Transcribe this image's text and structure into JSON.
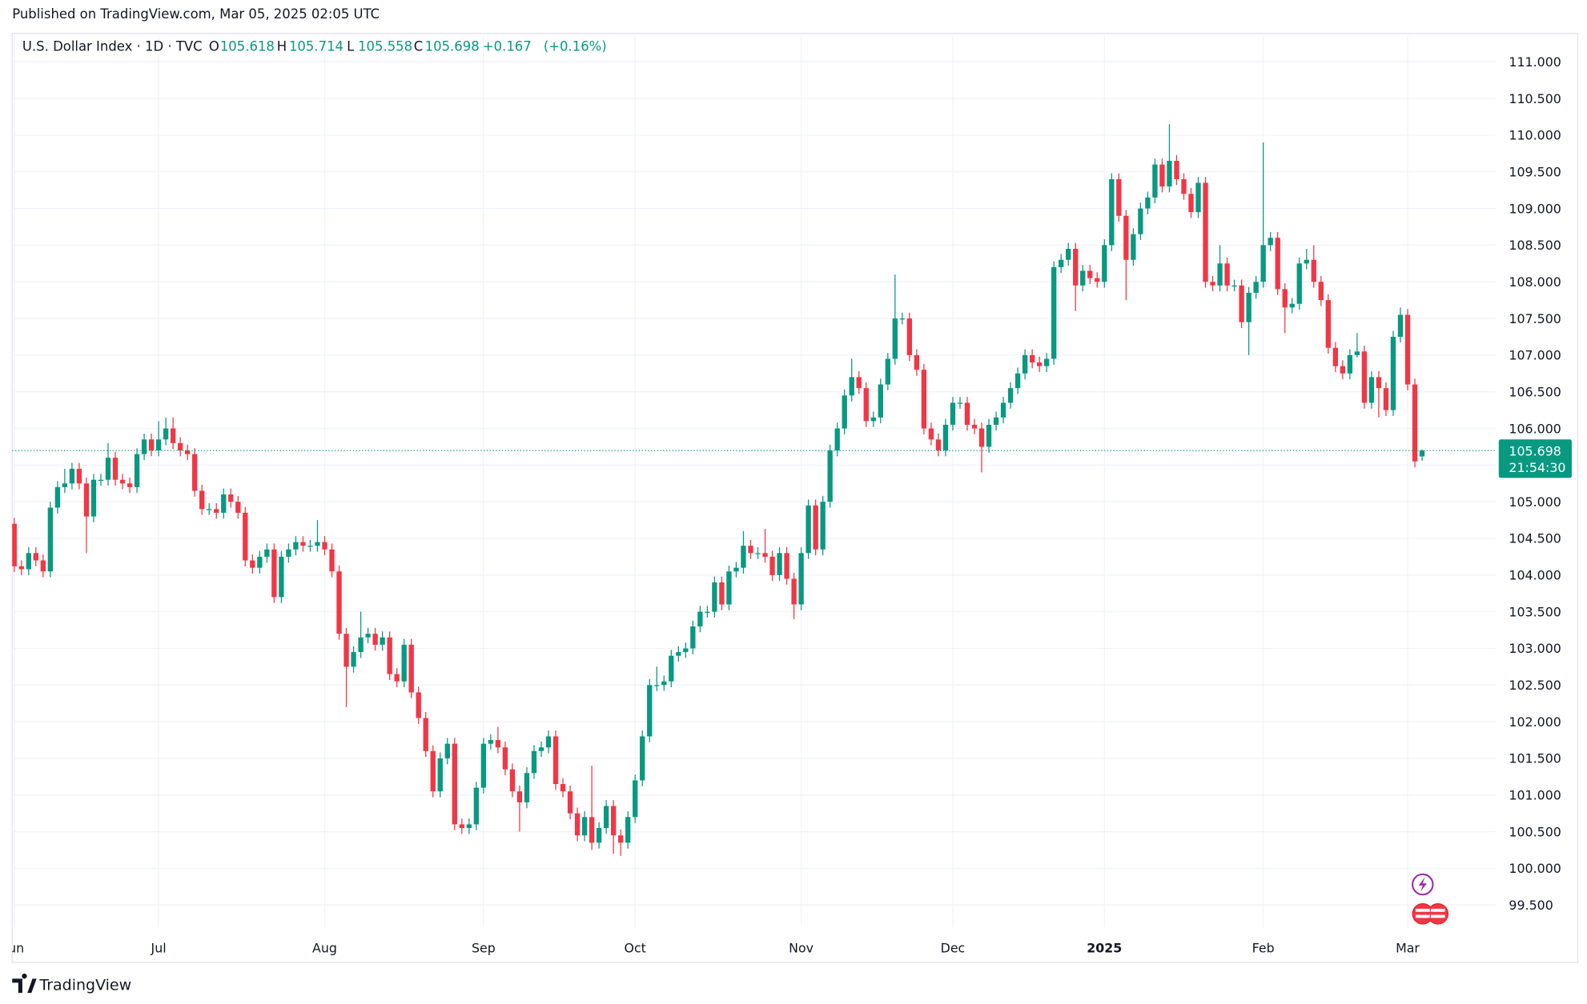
{
  "published": "Published on TradingView.com, Mar 05, 2025 02:05 UTC",
  "brand": "TradingView",
  "chart_data": {
    "type": "candlestick",
    "title": "U.S. Dollar Index · 1D · TVC",
    "ohlc_labels": [
      "O",
      "H",
      "L",
      "C"
    ],
    "change": {
      "value": 0.167,
      "label": "+0.167"
    },
    "change_pct": {
      "value": 0.16,
      "label": "(+0.16%)"
    },
    "countdown": "21:54:30",
    "up_color": "#089981",
    "down_color": "#f23645",
    "grid": true,
    "ylim": [
      99.2,
      111.36
    ],
    "yticks": [
      {
        "value": 99.5,
        "label": "99.500"
      },
      {
        "value": 100,
        "label": "100.000"
      },
      {
        "value": 100.5,
        "label": "100.500"
      },
      {
        "value": 101,
        "label": "101.000"
      },
      {
        "value": 101.5,
        "label": "101.500"
      },
      {
        "value": 102,
        "label": "102.000"
      },
      {
        "value": 102.5,
        "label": "102.500"
      },
      {
        "value": 103,
        "label": "103.000"
      },
      {
        "value": 103.5,
        "label": "103.500"
      },
      {
        "value": 104,
        "label": "104.000"
      },
      {
        "value": 104.5,
        "label": "104.500"
      },
      {
        "value": 105,
        "label": "105.000"
      },
      {
        "value": 105.5,
        "label": "105.500"
      },
      {
        "value": 106,
        "label": "106.000"
      },
      {
        "value": 106.5,
        "label": "106.500"
      },
      {
        "value": 107,
        "label": "107.000"
      },
      {
        "value": 107.5,
        "label": "107.500"
      },
      {
        "value": 108,
        "label": "108.000"
      },
      {
        "value": 108.5,
        "label": "108.500"
      },
      {
        "value": 109,
        "label": "109.000"
      },
      {
        "value": 109.5,
        "label": "109.500"
      },
      {
        "value": 110,
        "label": "110.000"
      },
      {
        "value": 110.5,
        "label": "110.500"
      },
      {
        "value": 111,
        "label": "111.000"
      }
    ],
    "categories": [
      "Jun",
      null,
      null,
      null,
      null,
      null,
      null,
      null,
      null,
      null,
      null,
      null,
      null,
      null,
      null,
      null,
      null,
      null,
      null,
      null,
      "Jul",
      null,
      null,
      null,
      null,
      null,
      null,
      null,
      null,
      null,
      null,
      null,
      null,
      null,
      null,
      null,
      null,
      null,
      null,
      null,
      null,
      null,
      null,
      "Aug",
      null,
      null,
      null,
      null,
      null,
      null,
      null,
      null,
      null,
      null,
      null,
      null,
      null,
      null,
      null,
      null,
      null,
      null,
      null,
      null,
      null,
      "Sep",
      null,
      null,
      null,
      null,
      null,
      null,
      null,
      null,
      null,
      null,
      null,
      null,
      null,
      null,
      null,
      null,
      null,
      null,
      null,
      null,
      "Oct",
      null,
      null,
      null,
      null,
      null,
      null,
      null,
      null,
      null,
      null,
      null,
      null,
      null,
      null,
      null,
      null,
      null,
      null,
      null,
      null,
      null,
      null,
      "Nov",
      null,
      null,
      null,
      null,
      null,
      null,
      null,
      null,
      null,
      null,
      null,
      null,
      null,
      null,
      null,
      null,
      null,
      null,
      null,
      null,
      "Dec",
      null,
      null,
      null,
      null,
      null,
      null,
      null,
      null,
      null,
      null,
      null,
      null,
      null,
      null,
      null,
      null,
      null,
      null,
      null,
      null,
      "2025",
      null,
      null,
      null,
      null,
      null,
      null,
      null,
      null,
      null,
      null,
      null,
      null,
      null,
      null,
      null,
      null,
      null,
      null,
      null,
      null,
      null,
      "Feb",
      null,
      null,
      null,
      null,
      null,
      null,
      null,
      null,
      null,
      null,
      null,
      null,
      null,
      null,
      null,
      null,
      null,
      null,
      null,
      "Mar",
      null,
      null
    ],
    "open": [
      104.7,
      104.12,
      104.08,
      104.3,
      104.2,
      104.05,
      104.92,
      105.2,
      105.25,
      105.45,
      105.25,
      104.8,
      105.3,
      105.3,
      105.6,
      105.3,
      105.25,
      105.2,
      105.65,
      105.85,
      105.7,
      105.85,
      106.0,
      105.8,
      105.7,
      105.65,
      105.15,
      104.9,
      104.9,
      104.85,
      105.1,
      105.0,
      104.85,
      104.2,
      104.1,
      104.25,
      104.35,
      103.7,
      104.25,
      104.35,
      104.45,
      104.4,
      104.4,
      104.45,
      104.35,
      104.05,
      103.2,
      102.75,
      102.95,
      103.15,
      103.2,
      103.05,
      103.15,
      102.65,
      102.55,
      103.05,
      102.4,
      102.05,
      101.6,
      101.05,
      101.5,
      101.7,
      100.6,
      100.55,
      100.6,
      101.1,
      101.7,
      101.75,
      101.65,
      101.35,
      101.05,
      100.9,
      101.3,
      101.6,
      101.65,
      101.8,
      101.15,
      101.05,
      100.75,
      100.45,
      100.7,
      100.35,
      100.55,
      100.85,
      100.45,
      100.35,
      100.7,
      101.2,
      101.8,
      102.5,
      102.5,
      102.55,
      102.9,
      102.95,
      103.0,
      103.3,
      103.5,
      103.5,
      103.9,
      103.6,
      104.05,
      104.1,
      104.4,
      104.3,
      104.3,
      104.25,
      104.0,
      104.3,
      103.95,
      103.6,
      104.3,
      104.95,
      104.35,
      105.0,
      105.7,
      106.0,
      106.45,
      106.7,
      106.55,
      106.1,
      106.15,
      106.6,
      106.95,
      107.5,
      107.5,
      107.0,
      106.8,
      106.0,
      105.85,
      105.7,
      106.05,
      106.35,
      106.35,
      106.05,
      106.0,
      105.75,
      106.05,
      106.15,
      106.35,
      106.55,
      106.75,
      107.0,
      106.9,
      106.85,
      106.95,
      108.2,
      108.3,
      108.45,
      107.95,
      108.15,
      108.05,
      108.0,
      108.5,
      109.4,
      108.9,
      108.3,
      108.65,
      109.0,
      109.15,
      109.6,
      109.3,
      109.65,
      109.4,
      109.2,
      108.95,
      109.35,
      108.0,
      107.95,
      108.25,
      107.95,
      107.95,
      107.45,
      107.85,
      108.0,
      108.5,
      108.6,
      107.9,
      107.65,
      107.7,
      108.25,
      108.3,
      108.0,
      107.75,
      107.1,
      106.85,
      106.75,
      107.0,
      107.05,
      106.35,
      106.7,
      106.55,
      106.25,
      107.25,
      107.55,
      106.6,
      105.618
    ],
    "high": [
      104.78,
      104.2,
      104.38,
      104.38,
      104.28,
      105.0,
      105.28,
      105.45,
      105.53,
      105.53,
      105.33,
      105.38,
      105.38,
      105.8,
      105.68,
      105.38,
      105.33,
      105.73,
      105.93,
      105.93,
      106.1,
      106.15,
      106.15,
      105.88,
      105.78,
      105.73,
      105.23,
      104.98,
      104.98,
      105.18,
      105.18,
      105.08,
      104.93,
      104.28,
      104.33,
      104.43,
      104.43,
      104.33,
      104.43,
      104.53,
      104.53,
      104.48,
      104.75,
      104.53,
      104.43,
      104.13,
      103.28,
      103.03,
      103.5,
      103.28,
      103.28,
      103.23,
      103.23,
      102.73,
      103.13,
      103.13,
      102.48,
      102.13,
      101.68,
      101.58,
      101.78,
      101.78,
      100.68,
      100.68,
      101.18,
      101.78,
      101.83,
      101.93,
      101.73,
      101.43,
      101.13,
      101.38,
      101.68,
      101.73,
      101.88,
      101.88,
      101.23,
      101.13,
      100.83,
      100.78,
      101.4,
      100.63,
      100.93,
      100.93,
      100.53,
      100.78,
      101.28,
      101.88,
      102.58,
      102.75,
      102.63,
      102.98,
      103.03,
      103.08,
      103.38,
      103.58,
      103.58,
      103.98,
      103.98,
      104.13,
      104.18,
      104.6,
      104.48,
      104.38,
      104.63,
      104.33,
      104.38,
      104.38,
      104.03,
      104.38,
      105.03,
      105.03,
      105.08,
      105.78,
      106.08,
      106.53,
      106.95,
      106.78,
      106.63,
      106.23,
      106.68,
      107.03,
      108.1,
      107.58,
      107.58,
      107.08,
      106.88,
      106.08,
      105.93,
      106.13,
      106.43,
      106.43,
      106.43,
      106.13,
      106.08,
      106.13,
      106.23,
      106.43,
      106.63,
      106.83,
      107.08,
      107.08,
      106.98,
      107.03,
      108.28,
      108.38,
      108.53,
      108.53,
      108.23,
      108.23,
      108.13,
      108.58,
      109.48,
      109.48,
      108.98,
      108.73,
      109.08,
      109.23,
      109.68,
      109.68,
      110.15,
      109.73,
      109.48,
      109.28,
      109.43,
      109.43,
      108.08,
      108.5,
      108.33,
      108.03,
      108.03,
      107.93,
      108.08,
      109.9,
      108.68,
      108.68,
      107.98,
      107.78,
      108.33,
      108.45,
      108.5,
      108.08,
      107.83,
      107.18,
      106.93,
      107.08,
      107.3,
      107.13,
      106.78,
      106.78,
      106.63,
      107.33,
      107.65,
      107.63,
      106.68,
      105.714
    ],
    "low": [
      104.04,
      104.0,
      104.0,
      104.12,
      103.97,
      103.97,
      104.84,
      105.12,
      105.17,
      105.17,
      104.3,
      104.72,
      105.22,
      105.22,
      105.22,
      105.17,
      105.12,
      105.12,
      105.57,
      105.62,
      105.62,
      105.77,
      105.72,
      105.62,
      105.57,
      105.07,
      104.82,
      104.82,
      104.77,
      104.77,
      104.92,
      104.77,
      104.12,
      104.02,
      104.02,
      104.17,
      103.62,
      103.62,
      104.17,
      104.27,
      104.32,
      104.32,
      104.32,
      104.27,
      103.97,
      103.12,
      102.2,
      102.67,
      102.87,
      103.07,
      102.97,
      102.97,
      102.57,
      102.47,
      102.47,
      102.32,
      101.97,
      101.52,
      100.97,
      100.97,
      101.42,
      100.52,
      100.47,
      100.47,
      100.52,
      101.02,
      101.62,
      101.57,
      101.27,
      100.97,
      100.5,
      100.82,
      101.22,
      101.52,
      101.57,
      101.07,
      100.97,
      100.67,
      100.37,
      100.37,
      100.25,
      100.27,
      100.47,
      100.2,
      100.17,
      100.27,
      100.62,
      101.12,
      101.72,
      102.42,
      102.42,
      102.47,
      102.82,
      102.87,
      102.92,
      103.22,
      103.42,
      103.42,
      103.52,
      103.52,
      103.97,
      104.02,
      104.22,
      104.22,
      104.17,
      103.92,
      103.92,
      103.87,
      103.4,
      103.52,
      104.22,
      104.27,
      104.27,
      104.92,
      105.62,
      105.92,
      106.37,
      106.47,
      106.02,
      106.02,
      106.07,
      106.52,
      106.87,
      107.42,
      106.92,
      106.72,
      105.92,
      105.77,
      105.62,
      105.62,
      105.97,
      106.27,
      105.97,
      105.92,
      105.4,
      105.67,
      105.97,
      106.07,
      106.27,
      106.47,
      106.67,
      106.82,
      106.77,
      106.77,
      106.87,
      108.12,
      108.22,
      107.6,
      107.87,
      107.97,
      107.92,
      107.92,
      108.42,
      108.82,
      107.75,
      108.22,
      108.57,
      108.92,
      109.07,
      109.22,
      109.22,
      109.32,
      109.12,
      108.87,
      108.87,
      107.92,
      107.87,
      107.87,
      107.87,
      107.87,
      107.37,
      107.0,
      107.77,
      107.92,
      108.42,
      107.82,
      107.3,
      107.57,
      107.62,
      108.17,
      107.92,
      107.67,
      107.02,
      106.77,
      106.67,
      106.67,
      106.97,
      106.27,
      106.27,
      106.15,
      106.17,
      106.17,
      107.17,
      106.52,
      105.47,
      105.558
    ],
    "close": [
      104.12,
      104.08,
      104.3,
      104.2,
      104.05,
      104.92,
      105.2,
      105.25,
      105.45,
      105.25,
      104.8,
      105.3,
      105.3,
      105.6,
      105.3,
      105.25,
      105.2,
      105.65,
      105.85,
      105.7,
      105.85,
      106.0,
      105.8,
      105.7,
      105.65,
      105.15,
      104.9,
      104.9,
      104.85,
      105.1,
      105.0,
      104.85,
      104.2,
      104.1,
      104.25,
      104.35,
      103.7,
      104.25,
      104.35,
      104.45,
      104.4,
      104.4,
      104.45,
      104.35,
      104.05,
      103.2,
      102.75,
      102.95,
      103.15,
      103.2,
      103.05,
      103.15,
      102.65,
      102.55,
      103.05,
      102.4,
      102.05,
      101.6,
      101.05,
      101.5,
      101.7,
      100.6,
      100.55,
      100.6,
      101.1,
      101.7,
      101.75,
      101.65,
      101.35,
      101.05,
      100.9,
      101.3,
      101.6,
      101.65,
      101.8,
      101.15,
      101.05,
      100.75,
      100.45,
      100.7,
      100.35,
      100.55,
      100.85,
      100.45,
      100.35,
      100.7,
      101.2,
      101.8,
      102.5,
      102.5,
      102.55,
      102.9,
      102.95,
      103.0,
      103.3,
      103.5,
      103.5,
      103.9,
      103.6,
      104.05,
      104.1,
      104.4,
      104.3,
      104.3,
      104.25,
      104.0,
      104.3,
      103.95,
      103.6,
      104.3,
      104.95,
      104.35,
      105.0,
      105.7,
      106.0,
      106.45,
      106.7,
      106.55,
      106.1,
      106.15,
      106.6,
      106.95,
      107.5,
      107.5,
      107.0,
      106.8,
      106.0,
      105.85,
      105.7,
      106.05,
      106.35,
      106.35,
      106.05,
      106.0,
      105.75,
      106.05,
      106.15,
      106.35,
      106.55,
      106.75,
      107.0,
      106.9,
      106.85,
      106.95,
      108.2,
      108.3,
      108.45,
      107.95,
      108.15,
      108.05,
      108.0,
      108.5,
      109.4,
      108.9,
      108.3,
      108.65,
      109.0,
      109.15,
      109.6,
      109.3,
      109.65,
      109.4,
      109.2,
      108.95,
      109.35,
      108.0,
      107.95,
      108.25,
      107.95,
      107.95,
      107.45,
      107.85,
      108.0,
      108.5,
      108.6,
      107.9,
      107.65,
      107.7,
      108.25,
      108.3,
      108.0,
      107.75,
      107.1,
      106.85,
      106.75,
      107.0,
      107.05,
      106.35,
      106.7,
      106.55,
      106.25,
      107.25,
      107.55,
      106.6,
      105.55,
      105.698
    ]
  }
}
